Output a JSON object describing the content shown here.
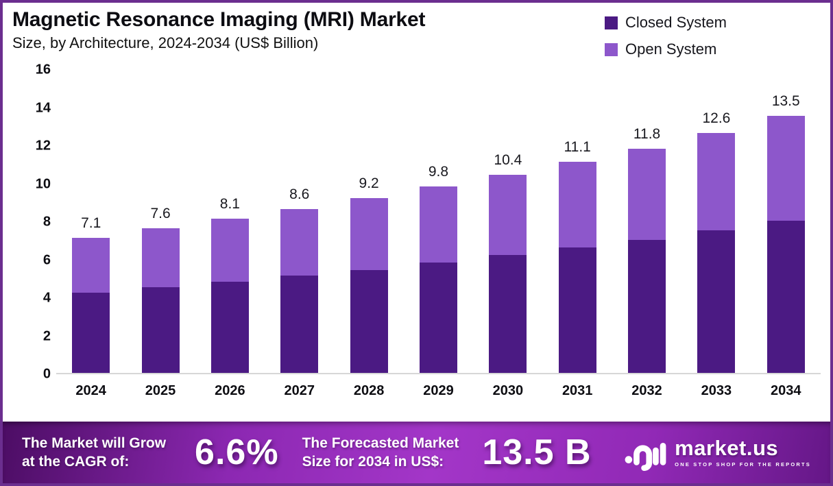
{
  "header": {
    "title": "Magnetic Resonance Imaging (MRI) Market",
    "subtitle": "Size, by Architecture, 2024-2034 (US$ Billion)"
  },
  "legend": {
    "closed": {
      "label": "Closed System",
      "color": "#4b1a83"
    },
    "open": {
      "label": "Open System",
      "color": "#8d57cb"
    }
  },
  "chart_data": {
    "type": "bar",
    "stacked": true,
    "title": "Magnetic Resonance Imaging (MRI) Market Size, by Architecture, 2024-2034 (US$ Billion)",
    "categories": [
      "2024",
      "2025",
      "2026",
      "2027",
      "2028",
      "2029",
      "2030",
      "2031",
      "2032",
      "2033",
      "2034"
    ],
    "series": [
      {
        "name": "Closed System",
        "color": "#4b1a83",
        "values": [
          4.2,
          4.5,
          4.8,
          5.1,
          5.4,
          5.8,
          6.2,
          6.6,
          7.0,
          7.5,
          8.0
        ]
      },
      {
        "name": "Open System",
        "color": "#8d57cb",
        "values": [
          2.9,
          3.1,
          3.3,
          3.5,
          3.8,
          4.0,
          4.2,
          4.5,
          4.8,
          5.1,
          5.5
        ]
      }
    ],
    "totals": [
      7.1,
      7.6,
      8.1,
      8.6,
      9.2,
      9.8,
      10.4,
      11.1,
      11.8,
      12.6,
      13.5
    ],
    "xlabel": "",
    "ylabel": "",
    "ylim": [
      0,
      16
    ],
    "yticks": [
      0,
      2,
      4,
      6,
      8,
      10,
      12,
      14,
      16
    ],
    "grid": false,
    "legend_position": "top-right",
    "bar_value_labels": true
  },
  "banner": {
    "cagr_label_line1": "The Market will Grow",
    "cagr_label_line2": "at the CAGR of:",
    "cagr_value": "6.6%",
    "forecast_label_line1": "The Forecasted Market",
    "forecast_label_line2": "Size for 2034 in US$:",
    "forecast_value": "13.5 B",
    "brand": {
      "name": "market.us",
      "tagline": "ONE STOP SHOP FOR THE REPORTS"
    }
  },
  "colors": {
    "closed_system": "#4b1a83",
    "open_system": "#8d57cb",
    "page_border": "#6b2e8f",
    "axis_line": "#d7d7d7",
    "text": "#0d0d12",
    "banner_gradient_start": "#4c0d64",
    "banner_gradient_mid": "#a336c8",
    "banner_gradient_end": "#651787",
    "banner_text": "#ffffff"
  }
}
